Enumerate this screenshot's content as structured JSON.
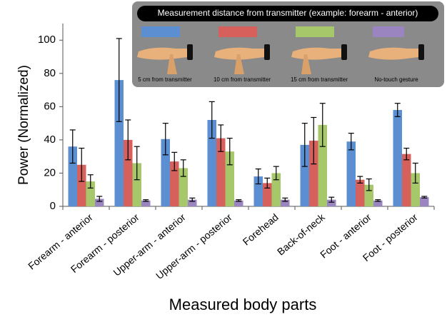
{
  "chart_data": {
    "type": "bar",
    "y_label": "Power (Normalized)",
    "x_label": "Measured body parts",
    "legend_title": "Measurement distance from transmitter (example: forearm - anterior)",
    "categories": [
      "Forearm - anterior",
      "Forearm - posterior",
      "Upper-arm - anterior",
      "Upper-arm - posterior",
      "Forehead",
      "Back-of-neck",
      "Foot - anterior",
      "Foot - posterior"
    ],
    "series": [
      {
        "name": "5 cm from transmitter",
        "color": "#5b8fd1",
        "values": [
          36,
          76,
          40.5,
          52,
          18,
          37,
          39,
          58
        ],
        "errors": [
          10,
          25,
          9.5,
          11,
          4.5,
          13,
          5,
          4
        ]
      },
      {
        "name": "10 cm from transmitter",
        "color": "#d5605c",
        "values": [
          25,
          40,
          27,
          41,
          14,
          39.5,
          16,
          31.5
        ],
        "errors": [
          10,
          12,
          5.5,
          8,
          3,
          14,
          2,
          3.5
        ]
      },
      {
        "name": "15 cm from transmitter",
        "color": "#a6c86a",
        "values": [
          15,
          26,
          23,
          33,
          20,
          49,
          13,
          20
        ],
        "errors": [
          4,
          10,
          5,
          8,
          4,
          13,
          3.5,
          6
        ]
      },
      {
        "name": "No-touch gesture",
        "color": "#9a85c0",
        "values": [
          4.5,
          3.5,
          4,
          3.5,
          4,
          4,
          3.5,
          5.5
        ],
        "errors": [
          1.5,
          0.5,
          1,
          0.5,
          1,
          1.5,
          0.5,
          0.5
        ]
      }
    ],
    "ylim": [
      0,
      110
    ],
    "yticks": [
      0,
      20,
      40,
      60,
      80,
      100
    ]
  }
}
